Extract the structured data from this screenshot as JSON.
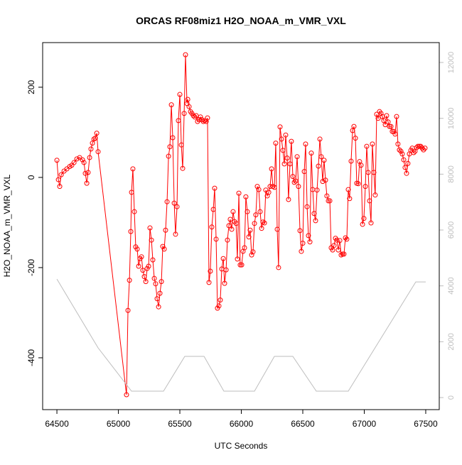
{
  "chart_data": {
    "type": "line",
    "title": "ORCAS RF08miz1 H2O_NOAA_m_VMR_VXL",
    "xlabel": "UTC Seconds",
    "ylabel": "H2O_NOAA_m_VMR_VXL",
    "xlim": [
      64384,
      67610
    ],
    "ylim": [
      -515,
      299
    ],
    "y2lim": [
      -432,
      12712
    ],
    "xticks": [
      64500,
      65000,
      65500,
      66000,
      66500,
      67000,
      67500
    ],
    "yticks": [
      -400,
      -200,
      0,
      200
    ],
    "y2ticks": [
      0,
      2000,
      4000,
      6000,
      8000,
      10000,
      12000
    ],
    "series": [
      {
        "color": "#ff0000",
        "markers": true,
        "x": [
          64500,
          64512,
          64523,
          64535,
          64558,
          64581,
          64604,
          64621,
          64639,
          64662,
          64685,
          64708,
          64720,
          64731,
          64743,
          64754,
          64766,
          64777,
          64789,
          64801,
          64812,
          64824,
          64835,
          65066,
          65078,
          65090,
          65101,
          65107,
          65118,
          65130,
          65141,
          65153,
          65165,
          65176,
          65188,
          65199,
          65211,
          65223,
          65234,
          65246,
          65257,
          65269,
          65280,
          65292,
          65303,
          65315,
          65327,
          65338,
          65350,
          65361,
          65373,
          65384,
          65396,
          65408,
          65419,
          65431,
          65442,
          65454,
          65465,
          65477,
          65488,
          65500,
          65512,
          65523,
          65535,
          65546,
          65558,
          65564,
          65575,
          65587,
          65598,
          65610,
          65621,
          65633,
          65644,
          65656,
          65668,
          65679,
          65691,
          65702,
          65714,
          65725,
          65737,
          65748,
          65760,
          65772,
          65783,
          65795,
          65806,
          65818,
          65829,
          65841,
          65853,
          65864,
          65876,
          65887,
          65899,
          65910,
          65922,
          65933,
          65945,
          65957,
          65968,
          65980,
          65991,
          66003,
          66014,
          66026,
          66037,
          66049,
          66061,
          66072,
          66084,
          66095,
          66107,
          66118,
          66130,
          66142,
          66153,
          66165,
          66176,
          66188,
          66199,
          66211,
          66223,
          66234,
          66246,
          66257,
          66269,
          66280,
          66292,
          66303,
          66315,
          66327,
          66338,
          66350,
          66361,
          66373,
          66384,
          66396,
          66407,
          66419,
          66431,
          66442,
          66454,
          66465,
          66477,
          66488,
          66500,
          66512,
          66523,
          66535,
          66546,
          66558,
          66569,
          66581,
          66592,
          66604,
          66616,
          66627,
          66639,
          66650,
          66662,
          66673,
          66685,
          66696,
          66708,
          66720,
          66731,
          66743,
          66754,
          66766,
          66777,
          66789,
          66801,
          66812,
          66824,
          66835,
          66847,
          66858,
          66870,
          66881,
          66893,
          66905,
          66916,
          66928,
          66939,
          66951,
          66962,
          66974,
          66986,
          66997,
          67009,
          67020,
          67032,
          67043,
          67055,
          67066,
          67078,
          67089,
          67101,
          67113,
          67124,
          67136,
          67147,
          67159,
          67171,
          67182,
          67194,
          67205,
          67217,
          67228,
          67240,
          67251,
          67263,
          67274,
          67286,
          67298,
          67309,
          67321,
          67332,
          67344,
          67355,
          67367,
          67379,
          67390,
          67402,
          67413,
          67425,
          67436,
          67448,
          67459,
          67471,
          67482,
          67494
        ],
        "values": [
          38,
          -5,
          -20,
          6,
          14,
          19,
          24,
          27,
          33,
          41,
          44,
          39,
          33,
          9,
          -13,
          11,
          44,
          63,
          76,
          85,
          87,
          98,
          57,
          -482,
          -295,
          -228,
          -120,
          -33,
          19,
          -76,
          -154,
          -159,
          -197,
          -180,
          -176,
          -206,
          -220,
          -231,
          -202,
          -197,
          -112,
          -139,
          -183,
          -224,
          -236,
          -269,
          -287,
          -257,
          -231,
          -153,
          -159,
          -117,
          -54,
          47,
          68,
          161,
          88,
          -57,
          -126,
          -65,
          126,
          184,
          72,
          20,
          142,
          272,
          164,
          173,
          157,
          146,
          142,
          137,
          134,
          137,
          124,
          128,
          134,
          128,
          124,
          126,
          124,
          132,
          -233,
          -208,
          -110,
          -71,
          -24,
          -137,
          -290,
          -285,
          -272,
          -203,
          -180,
          -235,
          -205,
          -139,
          -107,
          -93,
          -115,
          -76,
          -98,
          -102,
          -181,
          -35,
          -194,
          -194,
          -164,
          -156,
          -43,
          -76,
          -132,
          -117,
          -172,
          -165,
          -102,
          -83,
          -20,
          -27,
          -76,
          -113,
          -99,
          -101,
          -28,
          -41,
          -33,
          -20,
          19,
          -20,
          -22,
          76,
          -115,
          -200,
          112,
          85,
          60,
          30,
          94,
          43,
          -49,
          30,
          80,
          2,
          -11,
          -8,
          46,
          -20,
          -118,
          -164,
          -146,
          13,
          74,
          -65,
          -129,
          -143,
          54,
          -27,
          -80,
          -96,
          -28,
          25,
          85,
          46,
          -9,
          38,
          -6,
          -41,
          -52,
          -52,
          -156,
          -161,
          -151,
          -135,
          -139,
          -161,
          -140,
          -172,
          -170,
          -170,
          -134,
          -137,
          -27,
          -47,
          36,
          104,
          113,
          87,
          -13,
          -14,
          35,
          27,
          -104,
          -91,
          -20,
          69,
          11,
          -52,
          -101,
          74,
          11,
          -39,
          140,
          131,
          146,
          142,
          135,
          126,
          117,
          137,
          123,
          113,
          113,
          102,
          102,
          96,
          135,
          74,
          61,
          58,
          52,
          39,
          22,
          9,
          31,
          52,
          60,
          65,
          55,
          58,
          66,
          69,
          69,
          69,
          65,
          61,
          65
        ]
      },
      {
        "color": "#bebebe",
        "axis": "y2",
        "markers": false,
        "x": [
          64500,
          64835,
          65107,
          65367,
          65540,
          65697,
          65858,
          66107,
          66269,
          66419,
          66610,
          66870,
          67419,
          67500
        ],
        "values": [
          4244,
          1779,
          229,
          229,
          1474,
          1474,
          229,
          229,
          1474,
          1474,
          229,
          229,
          4142,
          4142
        ]
      }
    ]
  }
}
